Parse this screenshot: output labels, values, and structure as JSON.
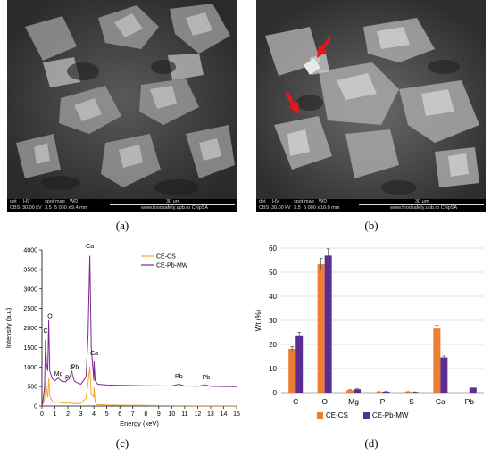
{
  "panels": {
    "a": {
      "caption": "(a)",
      "sem_bar": {
        "det": "det",
        "hv": "HV",
        "spot": "spot",
        "mag": "mag",
        "wd": "WD",
        "det_val": "CBS",
        "hv_val": "30.00 kV",
        "spot_val": "3.5",
        "mag_val": "5 000 x",
        "wd_val": "9.4 mm",
        "scale": "30 μm",
        "site": "www.foodsafety.upb.ro CNpSA"
      }
    },
    "b": {
      "caption": "(b)",
      "sem_bar": {
        "det": "det",
        "hv": "HV",
        "spot": "spot",
        "mag": "mag",
        "wd": "WD",
        "det_val": "CBS",
        "hv_val": "30.00 kV",
        "spot_val": "3.5",
        "mag_val": "5 000 x",
        "wd_val": "10.0 mm",
        "scale": "30 μm",
        "site": "www.foodsafety.upb.ro CNpSA"
      },
      "arrow_color": "#e8161b"
    },
    "c": {
      "caption": "(c)"
    },
    "d": {
      "caption": "(d)"
    }
  },
  "chart_data": [
    {
      "type": "line",
      "xlabel": "Energy (keV)",
      "ylabel": "Intensity (a.u)",
      "xlim": [
        0,
        15
      ],
      "ylim": [
        0,
        4000
      ],
      "xticks": [
        "0",
        "1",
        "2",
        "3",
        "4",
        "5",
        "6",
        "7",
        "8",
        "9",
        "10",
        "11",
        "12",
        "13",
        "14",
        "15"
      ],
      "yticks": [
        "0",
        "500",
        "1000",
        "1500",
        "2000",
        "2500",
        "3000",
        "3500",
        "4000"
      ],
      "legend": "top-right",
      "series": [
        {
          "name": "CE-CS",
          "color": "#f5a623",
          "x": [
            0.0,
            0.1,
            0.2,
            0.27,
            0.35,
            0.45,
            0.52,
            0.6,
            0.8,
            1.0,
            1.25,
            1.5,
            1.8,
            2.0,
            2.3,
            2.5,
            3.0,
            3.4,
            3.55,
            3.69,
            3.8,
            4.0,
            4.01,
            4.1,
            4.2,
            5,
            6,
            8,
            10,
            12,
            15
          ],
          "y": [
            0,
            80,
            180,
            620,
            450,
            220,
            700,
            260,
            120,
            90,
            110,
            80,
            70,
            90,
            75,
            60,
            70,
            200,
            600,
            1000,
            300,
            230,
            480,
            100,
            40,
            25,
            20,
            15,
            10,
            8,
            5
          ]
        },
        {
          "name": "CE-Pb-MW",
          "color": "#7b2b8f",
          "x": [
            0.0,
            0.1,
            0.2,
            0.27,
            0.35,
            0.45,
            0.52,
            0.6,
            0.8,
            1.0,
            1.25,
            1.5,
            1.8,
            2.0,
            2.1,
            2.3,
            2.35,
            2.5,
            2.8,
            3.0,
            3.4,
            3.55,
            3.69,
            3.8,
            4.0,
            4.01,
            4.1,
            4.3,
            5,
            6,
            8,
            10,
            10.55,
            11,
            12,
            12.6,
            13,
            14,
            15
          ],
          "y": [
            0,
            200,
            500,
            1700,
            1100,
            900,
            2200,
            900,
            700,
            650,
            720,
            640,
            620,
            680,
            700,
            900,
            800,
            640,
            580,
            560,
            750,
            1800,
            3850,
            1500,
            650,
            1150,
            650,
            560,
            540,
            530,
            520,
            515,
            560,
            515,
            510,
            545,
            505,
            500,
            495
          ]
        }
      ],
      "annotations": [
        {
          "text": "C",
          "x": 0.28,
          "y": 1880
        },
        {
          "text": "O",
          "x": 0.62,
          "y": 2250
        },
        {
          "text": "Mg",
          "x": 1.28,
          "y": 780
        },
        {
          "text": "P",
          "x": 1.95,
          "y": 680
        },
        {
          "text": "S",
          "x": 2.3,
          "y": 950
        },
        {
          "text": "Pb",
          "x": 2.55,
          "y": 950
        },
        {
          "text": "Ca",
          "x": 3.69,
          "y": 4050
        },
        {
          "text": "Ca",
          "x": 4.03,
          "y": 1300
        },
        {
          "text": "Pb",
          "x": 10.55,
          "y": 710
        },
        {
          "text": "Pb",
          "x": 12.65,
          "y": 690
        }
      ]
    },
    {
      "type": "bar",
      "ylabel": "Wt (%)",
      "ylim": [
        0,
        60
      ],
      "yticks": [
        "0",
        "10",
        "20",
        "30",
        "40",
        "50",
        "60"
      ],
      "categories": [
        "C",
        "O",
        "Mg",
        "P",
        "S",
        "Ca",
        "Pb"
      ],
      "legend": "bottom",
      "series": [
        {
          "name": "CE-CS",
          "color": "#ed7d31",
          "values": [
            18.2,
            53.3,
            1.0,
            0.3,
            0.3,
            26.6,
            0
          ],
          "errors": [
            0.9,
            2.5,
            0.2,
            0.1,
            0.1,
            1.3,
            0
          ]
        },
        {
          "name": "CE-Pb-MW",
          "color": "#5b2d91",
          "values": [
            23.8,
            56.9,
            1.4,
            0.4,
            0.2,
            14.6,
            2.1
          ],
          "errors": [
            1.2,
            2.8,
            0.2,
            0.1,
            0.1,
            0.6,
            0
          ]
        }
      ]
    }
  ]
}
